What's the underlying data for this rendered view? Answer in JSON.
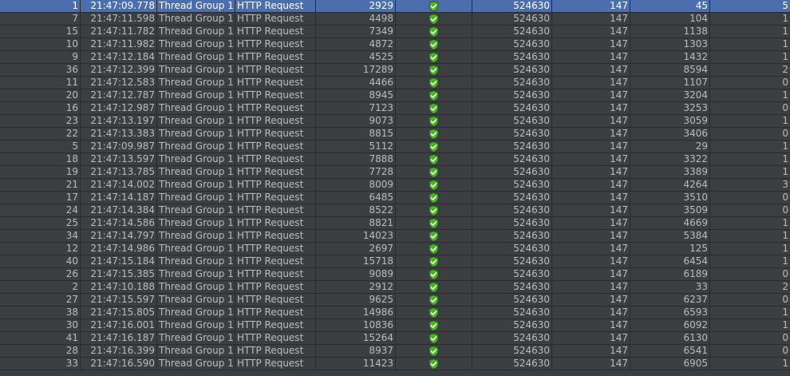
{
  "table": {
    "status_icon": "green-shield-check-icon",
    "colors": {
      "background": "#3c3f41",
      "grid": "#2b2b2b",
      "text": "#bbbbbb",
      "selected_row": "#4b6eaf",
      "success_green": "#4caf28"
    },
    "selected_row_index": 0,
    "rows": [
      {
        "num": "1",
        "start_time": "21:47:09.778",
        "thread": "Thread Group 1...",
        "label": "HTTP Request",
        "sample_time": "2929",
        "bytes": "524630",
        "sent_bytes": "147",
        "latency": "45",
        "connect": "5"
      },
      {
        "num": "7",
        "start_time": "21:47:11.598",
        "thread": "Thread Group 1...",
        "label": "HTTP Request",
        "sample_time": "4498",
        "bytes": "524630",
        "sent_bytes": "147",
        "latency": "104",
        "connect": "1"
      },
      {
        "num": "15",
        "start_time": "21:47:11.782",
        "thread": "Thread Group 1...",
        "label": "HTTP Request",
        "sample_time": "7349",
        "bytes": "524630",
        "sent_bytes": "147",
        "latency": "1138",
        "connect": "1"
      },
      {
        "num": "10",
        "start_time": "21:47:11.982",
        "thread": "Thread Group 1...",
        "label": "HTTP Request",
        "sample_time": "4872",
        "bytes": "524630",
        "sent_bytes": "147",
        "latency": "1303",
        "connect": "1"
      },
      {
        "num": "9",
        "start_time": "21:47:12.184",
        "thread": "Thread Group 1...",
        "label": "HTTP Request",
        "sample_time": "4525",
        "bytes": "524630",
        "sent_bytes": "147",
        "latency": "1432",
        "connect": "1"
      },
      {
        "num": "36",
        "start_time": "21:47:12.399",
        "thread": "Thread Group 1...",
        "label": "HTTP Request",
        "sample_time": "17289",
        "bytes": "524630",
        "sent_bytes": "147",
        "latency": "8594",
        "connect": "2"
      },
      {
        "num": "11",
        "start_time": "21:47:12.583",
        "thread": "Thread Group 1...",
        "label": "HTTP Request",
        "sample_time": "4466",
        "bytes": "524630",
        "sent_bytes": "147",
        "latency": "1107",
        "connect": "0"
      },
      {
        "num": "20",
        "start_time": "21:47:12.787",
        "thread": "Thread Group 1...",
        "label": "HTTP Request",
        "sample_time": "8945",
        "bytes": "524630",
        "sent_bytes": "147",
        "latency": "3204",
        "connect": "1"
      },
      {
        "num": "16",
        "start_time": "21:47:12.987",
        "thread": "Thread Group 1...",
        "label": "HTTP Request",
        "sample_time": "7123",
        "bytes": "524630",
        "sent_bytes": "147",
        "latency": "3253",
        "connect": "0"
      },
      {
        "num": "23",
        "start_time": "21:47:13.197",
        "thread": "Thread Group 1...",
        "label": "HTTP Request",
        "sample_time": "9073",
        "bytes": "524630",
        "sent_bytes": "147",
        "latency": "3059",
        "connect": "1"
      },
      {
        "num": "22",
        "start_time": "21:47:13.383",
        "thread": "Thread Group 1...",
        "label": "HTTP Request",
        "sample_time": "8815",
        "bytes": "524630",
        "sent_bytes": "147",
        "latency": "3406",
        "connect": "0"
      },
      {
        "num": "5",
        "start_time": "21:47:09.987",
        "thread": "Thread Group 1...",
        "label": "HTTP Request",
        "sample_time": "5112",
        "bytes": "524630",
        "sent_bytes": "147",
        "latency": "29",
        "connect": "1"
      },
      {
        "num": "18",
        "start_time": "21:47:13.597",
        "thread": "Thread Group 1...",
        "label": "HTTP Request",
        "sample_time": "7888",
        "bytes": "524630",
        "sent_bytes": "147",
        "latency": "3322",
        "connect": "1"
      },
      {
        "num": "19",
        "start_time": "21:47:13.785",
        "thread": "Thread Group 1...",
        "label": "HTTP Request",
        "sample_time": "7728",
        "bytes": "524630",
        "sent_bytes": "147",
        "latency": "3389",
        "connect": "1"
      },
      {
        "num": "21",
        "start_time": "21:47:14.002",
        "thread": "Thread Group 1...",
        "label": "HTTP Request",
        "sample_time": "8009",
        "bytes": "524630",
        "sent_bytes": "147",
        "latency": "4264",
        "connect": "3"
      },
      {
        "num": "17",
        "start_time": "21:47:14.187",
        "thread": "Thread Group 1...",
        "label": "HTTP Request",
        "sample_time": "6485",
        "bytes": "524630",
        "sent_bytes": "147",
        "latency": "3510",
        "connect": "0"
      },
      {
        "num": "24",
        "start_time": "21:47:14.384",
        "thread": "Thread Group 1...",
        "label": "HTTP Request",
        "sample_time": "8522",
        "bytes": "524630",
        "sent_bytes": "147",
        "latency": "3509",
        "connect": "0"
      },
      {
        "num": "25",
        "start_time": "21:47:14.586",
        "thread": "Thread Group 1...",
        "label": "HTTP Request",
        "sample_time": "8821",
        "bytes": "524630",
        "sent_bytes": "147",
        "latency": "4669",
        "connect": "1"
      },
      {
        "num": "34",
        "start_time": "21:47:14.797",
        "thread": "Thread Group 1...",
        "label": "HTTP Request",
        "sample_time": "14023",
        "bytes": "524630",
        "sent_bytes": "147",
        "latency": "5384",
        "connect": "1"
      },
      {
        "num": "12",
        "start_time": "21:47:14.986",
        "thread": "Thread Group 1...",
        "label": "HTTP Request",
        "sample_time": "2697",
        "bytes": "524630",
        "sent_bytes": "147",
        "latency": "125",
        "connect": "1"
      },
      {
        "num": "40",
        "start_time": "21:47:15.184",
        "thread": "Thread Group 1...",
        "label": "HTTP Request",
        "sample_time": "15718",
        "bytes": "524630",
        "sent_bytes": "147",
        "latency": "6454",
        "connect": "1"
      },
      {
        "num": "26",
        "start_time": "21:47:15.385",
        "thread": "Thread Group 1...",
        "label": "HTTP Request",
        "sample_time": "9089",
        "bytes": "524630",
        "sent_bytes": "147",
        "latency": "6189",
        "connect": "0"
      },
      {
        "num": "2",
        "start_time": "21:47:10.188",
        "thread": "Thread Group 1...",
        "label": "HTTP Request",
        "sample_time": "2912",
        "bytes": "524630",
        "sent_bytes": "147",
        "latency": "33",
        "connect": "2"
      },
      {
        "num": "27",
        "start_time": "21:47:15.597",
        "thread": "Thread Group 1...",
        "label": "HTTP Request",
        "sample_time": "9625",
        "bytes": "524630",
        "sent_bytes": "147",
        "latency": "6237",
        "connect": "0"
      },
      {
        "num": "38",
        "start_time": "21:47:15.805",
        "thread": "Thread Group 1...",
        "label": "HTTP Request",
        "sample_time": "14986",
        "bytes": "524630",
        "sent_bytes": "147",
        "latency": "6593",
        "connect": "1"
      },
      {
        "num": "30",
        "start_time": "21:47:16.001",
        "thread": "Thread Group 1...",
        "label": "HTTP Request",
        "sample_time": "10836",
        "bytes": "524630",
        "sent_bytes": "147",
        "latency": "6092",
        "connect": "1"
      },
      {
        "num": "41",
        "start_time": "21:47:16.187",
        "thread": "Thread Group 1...",
        "label": "HTTP Request",
        "sample_time": "15264",
        "bytes": "524630",
        "sent_bytes": "147",
        "latency": "6130",
        "connect": "0"
      },
      {
        "num": "28",
        "start_time": "21:47:16.399",
        "thread": "Thread Group 1...",
        "label": "HTTP Request",
        "sample_time": "8937",
        "bytes": "524630",
        "sent_bytes": "147",
        "latency": "6541",
        "connect": "0"
      },
      {
        "num": "33",
        "start_time": "21:47:16.590",
        "thread": "Thread Group 1...",
        "label": "HTTP Request",
        "sample_time": "11423",
        "bytes": "524630",
        "sent_bytes": "147",
        "latency": "6905",
        "connect": "1"
      }
    ]
  }
}
